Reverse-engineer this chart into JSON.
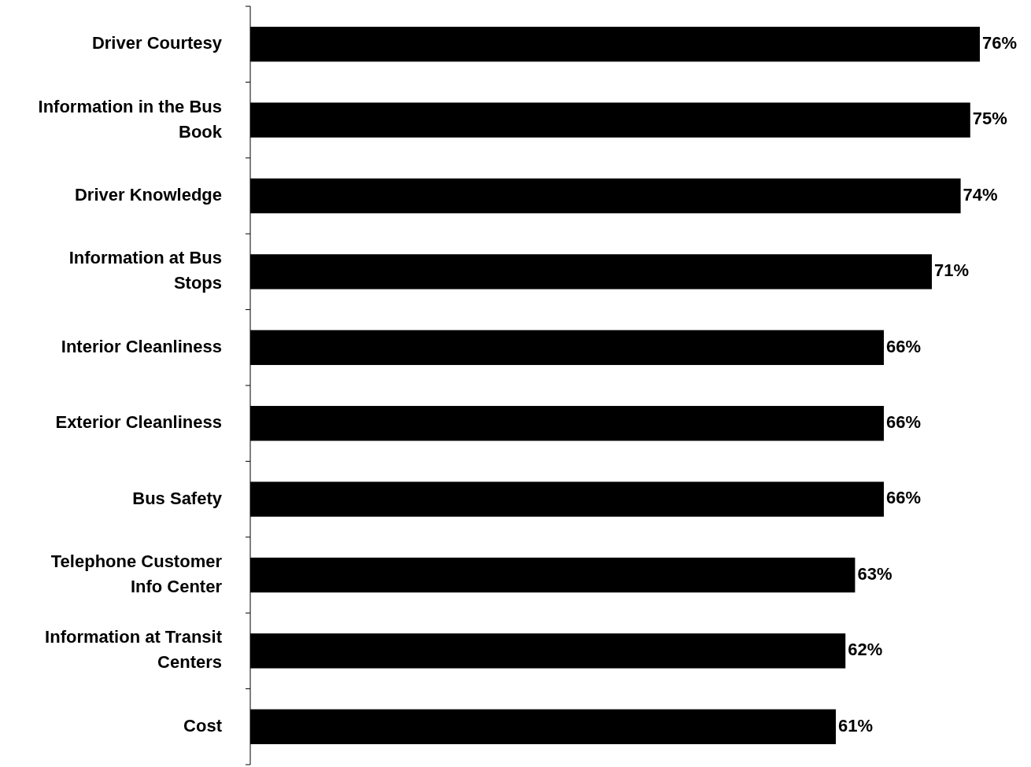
{
  "chart_data": {
    "type": "bar",
    "orientation": "horizontal",
    "categories": [
      "Driver Courtesy",
      "Information in the Bus Book",
      "Driver Knowledge",
      "Information at Bus Stops",
      "Interior Cleanliness",
      "Exterior Cleanliness",
      "Bus Safety",
      "Telephone Customer Info Center",
      "Information at Transit Centers",
      "Cost"
    ],
    "values": [
      76,
      75,
      74,
      71,
      66,
      66,
      66,
      63,
      62,
      61
    ],
    "value_labels": [
      "76%",
      "75%",
      "74%",
      "71%",
      "66%",
      "66%",
      "66%",
      "63%",
      "62%",
      "61%"
    ],
    "color": "#000000"
  }
}
